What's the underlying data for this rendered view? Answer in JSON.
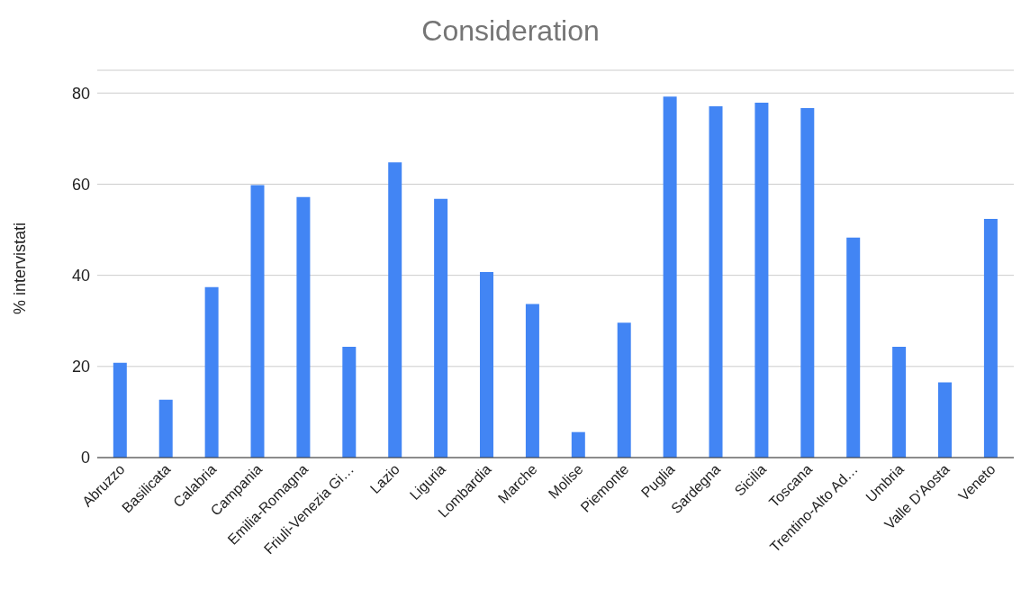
{
  "chart_data": {
    "type": "bar",
    "title": "Consideration",
    "ylabel": "% intervistati",
    "categories": [
      "Abruzzo",
      "Basilicata",
      "Calabria",
      "Campania",
      "Emilia-Romagna",
      "Friuli-Venezia Gi…",
      "Lazio",
      "Liguria",
      "Lombardia",
      "Marche",
      "Molise",
      "Piemonte",
      "Puglia",
      "Sardegna",
      "Sicilia",
      "Toscana",
      "Trentino-Alto Ad…",
      "Umbria",
      "Valle D'Aosta",
      "Veneto"
    ],
    "values": [
      20.8,
      12.7,
      37.4,
      59.8,
      57.2,
      24.3,
      64.8,
      56.8,
      40.7,
      33.7,
      5.6,
      29.6,
      79.2,
      77.1,
      77.9,
      76.7,
      48.3,
      24.3,
      16.5,
      52.4
    ],
    "color": "#4285f4",
    "ylim": [
      0,
      85
    ],
    "yticks": [
      0,
      20,
      40,
      60,
      80
    ],
    "grid": "y",
    "legend": false
  }
}
